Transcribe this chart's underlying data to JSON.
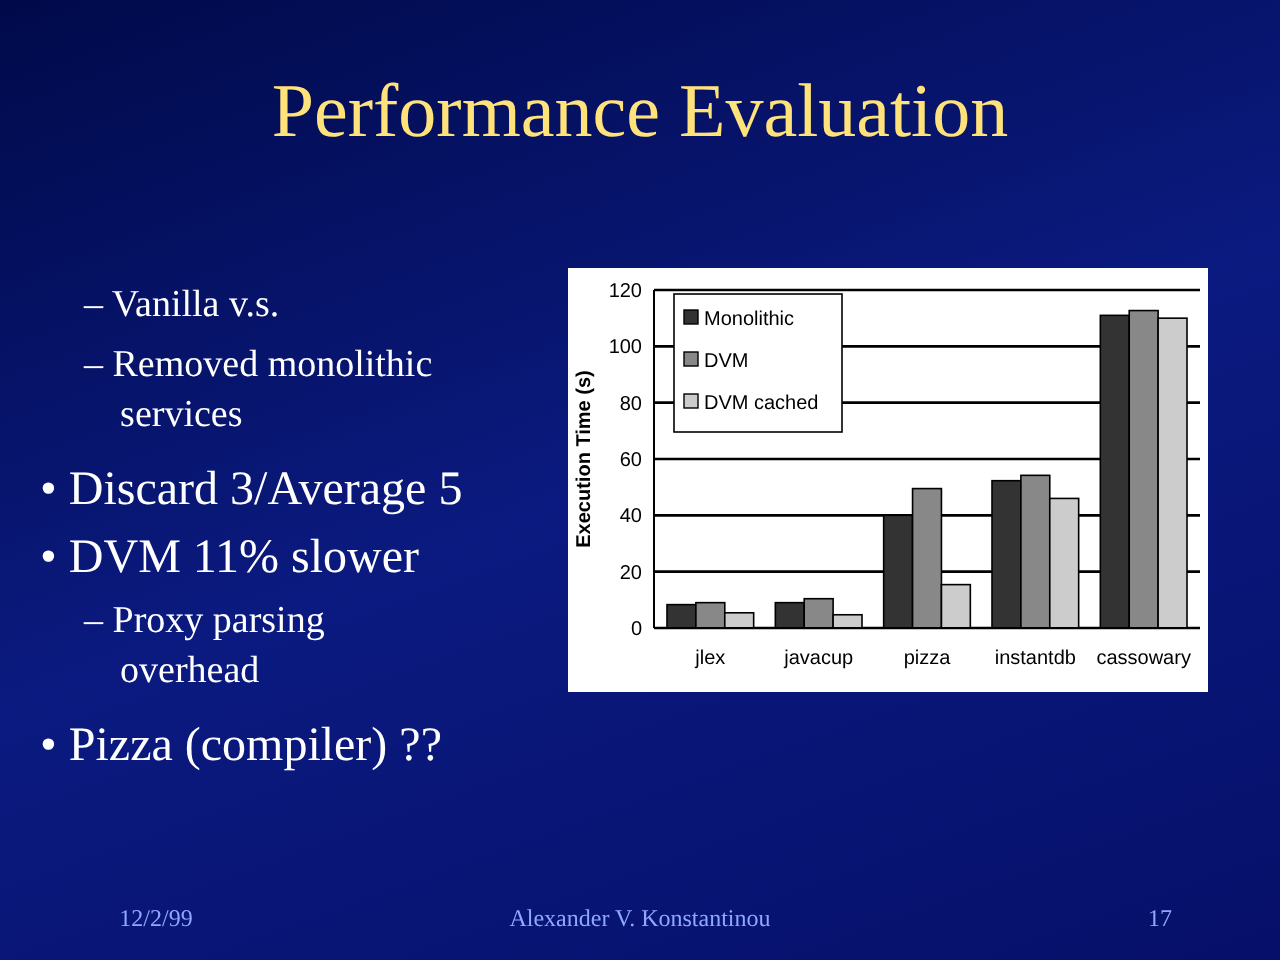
{
  "chart_data": {
    "type": "bar",
    "title": "Performance Evaluation",
    "ylabel": "Execution Time (s)",
    "categories": [
      "jlex",
      "javacup",
      "pizza",
      "instantdb",
      "cassowary"
    ],
    "series": [
      {
        "name": "Monolithic",
        "color": "#333333",
        "values": [
          8.3,
          9,
          40,
          52.3,
          111
        ]
      },
      {
        "name": "DVM",
        "color": "#888888",
        "values": [
          9,
          10.4,
          49.5,
          54.2,
          112.7
        ]
      },
      {
        "name": "DVM cached",
        "color": "#cccccc",
        "values": [
          5.4,
          4.7,
          15.4,
          46,
          110
        ]
      }
    ],
    "ylim": [
      0,
      120
    ],
    "yticks": [
      0,
      20,
      40,
      60,
      80,
      100,
      120
    ],
    "grid": "y",
    "legend": "top left",
    "annotations": [
      "– Vanilla v.s.",
      "– Removed monolithic services",
      "• Discard 3/Average 5",
      "• DVM 11% slower",
      "– Proxy parsing overhead",
      "• Pizza (compiler) ??",
      "12/2/99",
      "Alexander V. Konstantinou",
      "17"
    ]
  }
}
